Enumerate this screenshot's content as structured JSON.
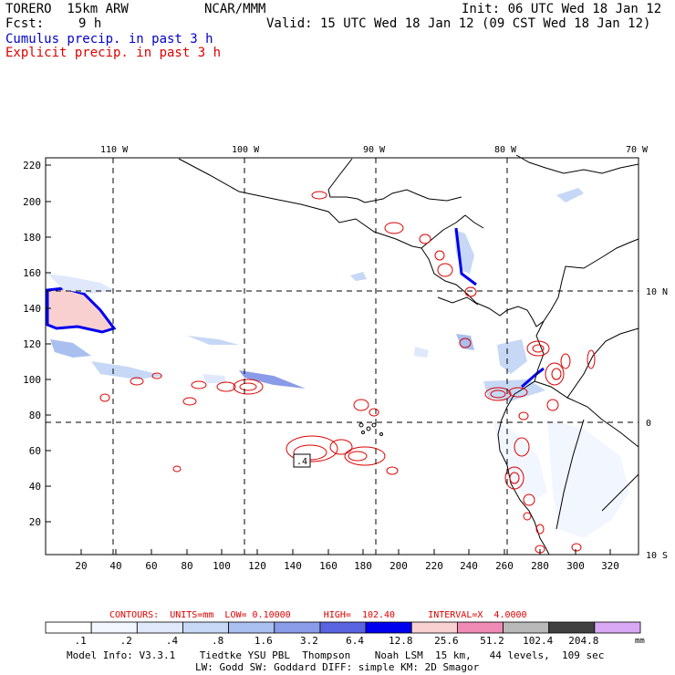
{
  "header": {
    "model": "TORERO  15km ARW",
    "org": "NCAR/MMM",
    "init": "Init: 06 UTC Wed 18 Jan 12",
    "fcst_label": "Fcst:",
    "fcst_value": "9 h",
    "valid": "Valid: 15 UTC Wed 18 Jan 12 (09 CST Wed 18 Jan 12)",
    "cumulus_legend": "Cumulus precip. in past 3 h",
    "explicit_legend": "Explicit precip. in past 3 h"
  },
  "map": {
    "top_labels": [
      "110 W",
      "100 W",
      "90 W",
      "80 W",
      "70 W"
    ],
    "right_labels": [
      "10 N",
      "0",
      "10 S"
    ],
    "left_ticks": [
      "220",
      "200",
      "180",
      "160",
      "140",
      "120",
      "100",
      "80",
      "60",
      "40",
      "20"
    ],
    "bottom_ticks": [
      "20",
      "40",
      "60",
      "80",
      "100",
      "120",
      "140",
      "160",
      "180",
      "200",
      "220",
      "240",
      "260",
      "280",
      "300",
      "320"
    ],
    "annotation": ".4"
  },
  "contours": {
    "line": "CONTOURS:  UNITS=mm  LOW= 0.10000      HIGH=  102.40      INTERVAL=X  4.0000"
  },
  "colorbar": {
    "labels": [
      ".1",
      ".2",
      ".4",
      ".8",
      "1.6",
      "3.2",
      "6.4",
      "12.8",
      "25.6",
      "51.2",
      "102.4",
      "204.8"
    ],
    "unit": "mm",
    "colors": [
      "#ffffff",
      "#f2f6ff",
      "#dfe9fb",
      "#c6d8f6",
      "#a8bff0",
      "#8a9be8",
      "#5a63e0",
      "#0000ee",
      "#f8d0d0",
      "#ee8ab4",
      "#b8b8b8",
      "#404040",
      "#d8a8f4"
    ]
  },
  "footer": {
    "line1": "Model Info: V3.3.1    Tiedtke YSU PBL  Thompson    Noah LSM  15 km,   44 levels,  109 sec",
    "line2": "LW: Godd SW: Goddard DIFF: simple KM: 2D Smagor"
  }
}
